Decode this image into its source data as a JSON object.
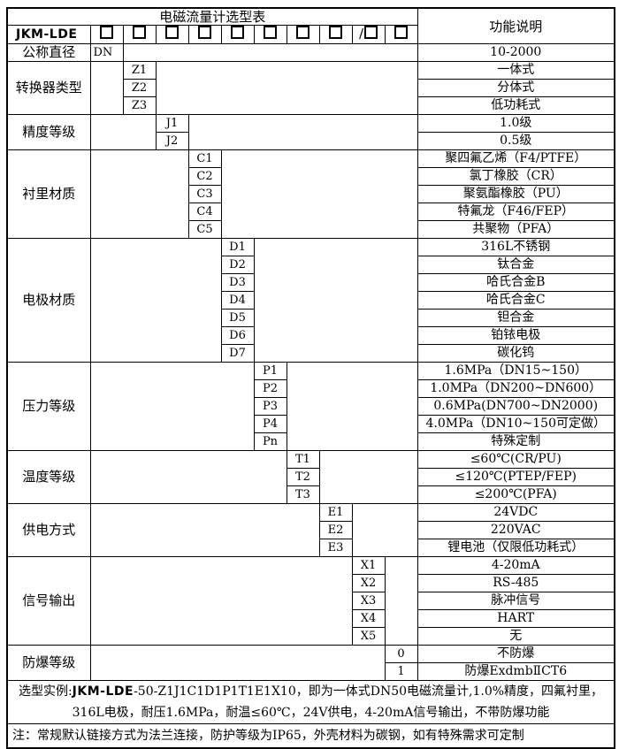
{
  "title": "电磁流量计选型表",
  "function_header": "功能说明",
  "model": {
    "label": "JKM-LDE",
    "box_count": 10,
    "slash_before_index": 9,
    "slash": "/"
  },
  "groups": [
    {
      "label": "公称直径",
      "col": 1,
      "rows": [
        {
          "code": "DN",
          "desc": "10-2000"
        }
      ]
    },
    {
      "label": "转换器类型",
      "col": 2,
      "rows": [
        {
          "code": "Z1",
          "desc": "一体式"
        },
        {
          "code": "Z2",
          "desc": "分体式"
        },
        {
          "code": "Z3",
          "desc": "低功耗式"
        }
      ]
    },
    {
      "label": "精度等级",
      "col": 3,
      "rows": [
        {
          "code": "J1",
          "desc": "1.0级"
        },
        {
          "code": "J2",
          "desc": "0.5级"
        }
      ]
    },
    {
      "label": "衬里材质",
      "col": 4,
      "rows": [
        {
          "code": "C1",
          "desc": "聚四氟乙烯（F4/PTFE）"
        },
        {
          "code": "C2",
          "desc": "氯丁橡胶（CR）"
        },
        {
          "code": "C3",
          "desc": "聚氨酯橡胶（PU）"
        },
        {
          "code": "C4",
          "desc": "特氟龙（F46/FEP）"
        },
        {
          "code": "C5",
          "desc": "共聚物（PFA）"
        }
      ]
    },
    {
      "label": "电极材质",
      "col": 5,
      "rows": [
        {
          "code": "D1",
          "desc": "316L不锈钢"
        },
        {
          "code": "D2",
          "desc": "钛合金"
        },
        {
          "code": "D3",
          "desc": "哈氏合金B"
        },
        {
          "code": "D4",
          "desc": "哈氏合金C"
        },
        {
          "code": "D5",
          "desc": "钽合金"
        },
        {
          "code": "D6",
          "desc": "铂铱电极"
        },
        {
          "code": "D7",
          "desc": "碳化钨"
        }
      ]
    },
    {
      "label": "压力等级",
      "col": 6,
      "rows": [
        {
          "code": "P1",
          "desc": "1.6MPa（DN15~150）"
        },
        {
          "code": "P2",
          "desc": "1.0MPa（DN200~DN600）"
        },
        {
          "code": "P3",
          "desc": "0.6MPa(DN700~DN2000)"
        },
        {
          "code": "P4",
          "desc": "4.0MPa（DN10~150可定做）"
        },
        {
          "code": "Pn",
          "desc": "特殊定制"
        }
      ]
    },
    {
      "label": "温度等级",
      "col": 7,
      "rows": [
        {
          "code": "T1",
          "desc": "≤60℃(CR/PU)"
        },
        {
          "code": "T2",
          "desc": "≤120℃(PTEP/FEP)"
        },
        {
          "code": "T3",
          "desc": "≤200℃(PFA)"
        }
      ]
    },
    {
      "label": "供电方式",
      "col": 8,
      "rows": [
        {
          "code": "E1",
          "desc": "24VDC"
        },
        {
          "code": "E2",
          "desc": "220VAC"
        },
        {
          "code": "E3",
          "desc": "锂电池（仅限低功耗式）"
        }
      ]
    },
    {
      "label": "信号输出",
      "col": 9,
      "rows": [
        {
          "code": "X1",
          "desc": "4-20mA"
        },
        {
          "code": "X2",
          "desc": "RS-485"
        },
        {
          "code": "X3",
          "desc": "脉冲信号"
        },
        {
          "code": "X4",
          "desc": "HART"
        },
        {
          "code": "X5",
          "desc": "无"
        }
      ]
    },
    {
      "label": "防爆等级",
      "col": 10,
      "rows": [
        {
          "code": "0",
          "desc": "不防爆"
        },
        {
          "code": "1",
          "desc": "防爆ExdmbⅡCT6"
        }
      ]
    }
  ],
  "footer": {
    "example": {
      "prefix": "选型实例:",
      "model": "JKM-LDE",
      "line1_rest": "-50-Z1J1C1D1P1T1E1X10，即为一体式DN50电磁流量计,1.0%精度，四氟衬里，",
      "line2": "316L电极，耐压1.6MPa，耐温≤60℃，24V供电，4-20mA信号输出，不带防爆功能"
    },
    "note": "注：常规默认链接方式为法兰连接，防护等级为IP65，外壳材料为碳钢，如有特殊需求可定制"
  },
  "colors": {
    "border": "#000000",
    "background": "#ffffff",
    "text": "#000000"
  }
}
